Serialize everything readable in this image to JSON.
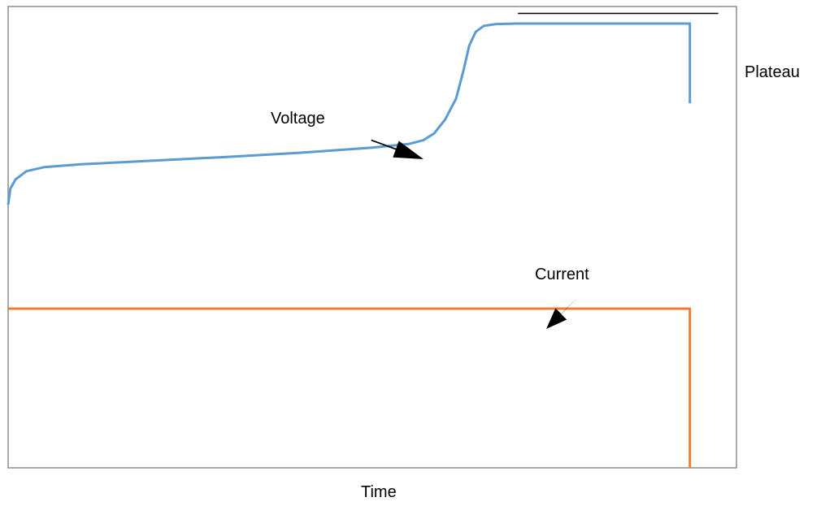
{
  "chart_data": {
    "type": "line",
    "title": "",
    "xlabel": "Time",
    "ylabel": "",
    "xlim": [
      0,
      100
    ],
    "ylim": [
      0,
      100
    ],
    "grid": false,
    "series": [
      {
        "name": "Voltage",
        "color": "#5B9BD5",
        "points": [
          [
            0,
            57
          ],
          [
            0.3,
            60.5
          ],
          [
            1,
            62.5
          ],
          [
            2.5,
            64.3
          ],
          [
            5,
            65.2
          ],
          [
            10,
            65.8
          ],
          [
            20,
            66.6
          ],
          [
            30,
            67.4
          ],
          [
            40,
            68.3
          ],
          [
            50,
            69.4
          ],
          [
            55,
            70.2
          ],
          [
            57,
            71
          ],
          [
            58.5,
            72.5
          ],
          [
            60,
            75.5
          ],
          [
            61.5,
            80
          ],
          [
            62.5,
            86
          ],
          [
            63.3,
            91.5
          ],
          [
            64.2,
            94.5
          ],
          [
            65.3,
            95.8
          ],
          [
            67,
            96.2
          ],
          [
            70,
            96.3
          ],
          [
            80,
            96.3
          ],
          [
            90,
            96.3
          ],
          [
            93.6,
            96.3
          ],
          [
            93.6,
            79
          ]
        ]
      },
      {
        "name": "Current",
        "color": "#ED7D31",
        "points": [
          [
            0,
            34.5
          ],
          [
            93.6,
            34.5
          ],
          [
            93.6,
            0
          ]
        ]
      }
    ],
    "annotations": [
      {
        "name": "Plateau",
        "text": "Plateau",
        "x_from": 70,
        "x_to": 97.5,
        "y": 98.5
      }
    ]
  }
}
